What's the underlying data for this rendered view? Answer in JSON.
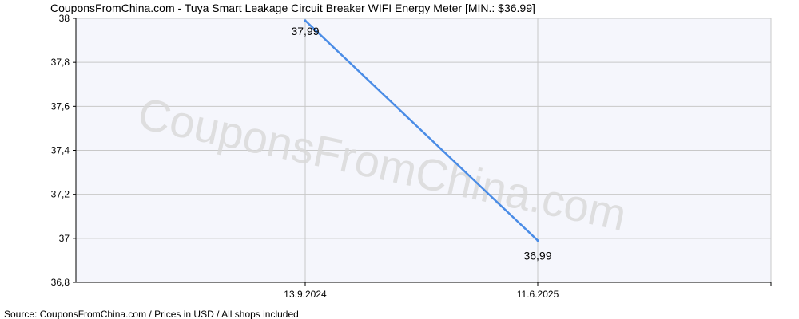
{
  "header": {
    "title": "CouponsFromChina.com - Tuya Smart Leakage Circuit Breaker WIFI Energy Meter [MIN.: $36.99]"
  },
  "watermark": {
    "text": "CouponsFromChina.com"
  },
  "footer": {
    "source": "Source: CouponsFromChina.com / Prices in USD / All shops included"
  },
  "colors": {
    "plot_background": "#f5f6fc",
    "grid": "#c8c8c8",
    "axis": "#000000",
    "line": "#4a8ce6"
  },
  "chart_data": {
    "type": "line",
    "title": "CouponsFromChina.com - Tuya Smart Leakage Circuit Breaker WIFI Energy Meter [MIN.: $36.99]",
    "xlabel": "",
    "ylabel": "",
    "categories": [
      "13.9.2024",
      "11.6.2025"
    ],
    "series": [
      {
        "values": [
          37.99,
          36.99
        ],
        "data_labels": [
          "37,99",
          "36,99"
        ]
      }
    ],
    "y_ticks": [
      "36,8",
      "37",
      "37,2",
      "37,4",
      "37,6",
      "37,8",
      "38"
    ],
    "ylim": [
      36.8,
      38
    ],
    "grid": true,
    "legend": "none"
  }
}
